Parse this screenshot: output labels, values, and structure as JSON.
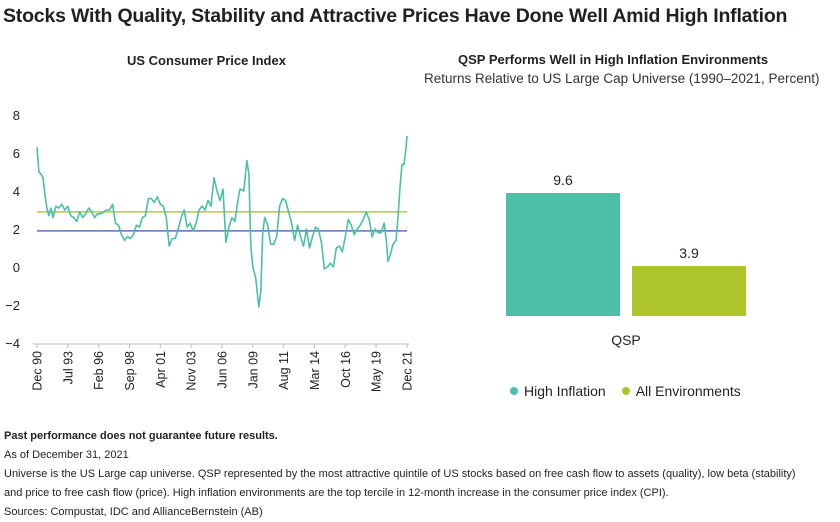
{
  "title": "Stocks With Quality, Stability and Attractive Prices Have Done Well Amid High Inflation",
  "colors": {
    "teal": "#4dbfa6",
    "lime": "#adc42b",
    "hline_green": "#b5cc39",
    "hline_blue": "#5b6fb2"
  },
  "chart_data": [
    {
      "type": "line",
      "title": "US Consumer Price Index",
      "ylim": [
        -4,
        8
      ],
      "yticks": [
        -4,
        -2,
        0,
        2,
        4,
        6,
        8
      ],
      "xlim": [
        1990.92,
        2021.92
      ],
      "x_ticks": [
        {
          "x": 1990.92,
          "label": "Dec 90"
        },
        {
          "x": 1993.5,
          "label": "Jul 93"
        },
        {
          "x": 1996.08,
          "label": "Feb 96"
        },
        {
          "x": 1998.67,
          "label": "Sep 98"
        },
        {
          "x": 2001.25,
          "label": "Apr 01"
        },
        {
          "x": 2003.83,
          "label": "Nov 03"
        },
        {
          "x": 2006.42,
          "label": "Jun 06"
        },
        {
          "x": 2009.0,
          "label": "Jan 09"
        },
        {
          "x": 2011.58,
          "label": "Aug 11"
        },
        {
          "x": 2014.17,
          "label": "Mar 14"
        },
        {
          "x": 2016.75,
          "label": "Oct 16"
        },
        {
          "x": 2019.33,
          "label": "May 19"
        },
        {
          "x": 2021.92,
          "label": "Dec 21"
        }
      ],
      "reference_lines": [
        {
          "y": 2.9,
          "color": "#b5cc39"
        },
        {
          "y": 1.9,
          "color": "#5b6fb2"
        }
      ],
      "series": [
        {
          "color": "#4dbfa6",
          "points": [
            [
              1990.92,
              6.3
            ],
            [
              1991.08,
              5.0
            ],
            [
              1991.25,
              4.9
            ],
            [
              1991.42,
              4.7
            ],
            [
              1991.58,
              3.8
            ],
            [
              1991.75,
              3.1
            ],
            [
              1991.92,
              2.7
            ],
            [
              1992.08,
              3.1
            ],
            [
              1992.25,
              2.6
            ],
            [
              1992.5,
              3.2
            ],
            [
              1992.75,
              3.1
            ],
            [
              1993.0,
              3.3
            ],
            [
              1993.25,
              3.0
            ],
            [
              1993.5,
              3.2
            ],
            [
              1993.75,
              2.7
            ],
            [
              1994.0,
              2.6
            ],
            [
              1994.25,
              2.4
            ],
            [
              1994.5,
              2.9
            ],
            [
              1994.75,
              2.6
            ],
            [
              1995.0,
              2.8
            ],
            [
              1995.25,
              3.1
            ],
            [
              1995.5,
              2.9
            ],
            [
              1995.75,
              2.6
            ],
            [
              1996.0,
              2.8
            ],
            [
              1996.25,
              2.8
            ],
            [
              1996.5,
              2.9
            ],
            [
              1996.75,
              3.0
            ],
            [
              1997.0,
              3.0
            ],
            [
              1997.25,
              3.3
            ],
            [
              1997.5,
              2.3
            ],
            [
              1997.75,
              2.2
            ],
            [
              1998.0,
              1.7
            ],
            [
              1998.25,
              1.4
            ],
            [
              1998.5,
              1.6
            ],
            [
              1998.75,
              1.5
            ],
            [
              1999.0,
              1.7
            ],
            [
              1999.25,
              2.2
            ],
            [
              1999.5,
              2.1
            ],
            [
              1999.75,
              2.6
            ],
            [
              2000.0,
              2.7
            ],
            [
              2000.25,
              3.6
            ],
            [
              2000.5,
              3.6
            ],
            [
              2000.75,
              3.4
            ],
            [
              2001.0,
              3.7
            ],
            [
              2001.25,
              3.3
            ],
            [
              2001.5,
              3.2
            ],
            [
              2001.75,
              2.6
            ],
            [
              2002.0,
              1.1
            ],
            [
              2002.25,
              1.5
            ],
            [
              2002.5,
              1.5
            ],
            [
              2002.75,
              2.0
            ],
            [
              2003.0,
              2.6
            ],
            [
              2003.25,
              3.0
            ],
            [
              2003.5,
              2.1
            ],
            [
              2003.75,
              2.3
            ],
            [
              2004.0,
              1.9
            ],
            [
              2004.25,
              2.3
            ],
            [
              2004.5,
              3.0
            ],
            [
              2004.75,
              3.2
            ],
            [
              2005.0,
              3.0
            ],
            [
              2005.25,
              3.5
            ],
            [
              2005.5,
              3.2
            ],
            [
              2005.75,
              4.7
            ],
            [
              2006.0,
              4.0
            ],
            [
              2006.25,
              3.5
            ],
            [
              2006.5,
              4.1
            ],
            [
              2006.75,
              1.3
            ],
            [
              2007.0,
              2.1
            ],
            [
              2007.25,
              2.6
            ],
            [
              2007.5,
              2.4
            ],
            [
              2007.75,
              3.5
            ],
            [
              2007.92,
              4.1
            ],
            [
              2008.25,
              4.0
            ],
            [
              2008.5,
              5.6
            ],
            [
              2008.67,
              4.9
            ],
            [
              2008.83,
              1.1
            ],
            [
              2009.0,
              0.0
            ],
            [
              2009.25,
              -0.6
            ],
            [
              2009.5,
              -2.1
            ],
            [
              2009.67,
              -1.3
            ],
            [
              2009.83,
              1.8
            ],
            [
              2010.0,
              2.6
            ],
            [
              2010.25,
              2.2
            ],
            [
              2010.5,
              1.2
            ],
            [
              2010.75,
              1.2
            ],
            [
              2011.0,
              1.6
            ],
            [
              2011.25,
              3.2
            ],
            [
              2011.5,
              3.6
            ],
            [
              2011.75,
              3.5
            ],
            [
              2012.0,
              2.9
            ],
            [
              2012.25,
              2.3
            ],
            [
              2012.5,
              1.4
            ],
            [
              2012.75,
              2.2
            ],
            [
              2013.0,
              1.6
            ],
            [
              2013.25,
              1.1
            ],
            [
              2013.5,
              2.0
            ],
            [
              2013.75,
              1.0
            ],
            [
              2014.0,
              1.6
            ],
            [
              2014.25,
              2.1
            ],
            [
              2014.5,
              2.0
            ],
            [
              2014.75,
              1.3
            ],
            [
              2015.0,
              -0.1
            ],
            [
              2015.25,
              0.0
            ],
            [
              2015.5,
              0.2
            ],
            [
              2015.75,
              0.0
            ],
            [
              2016.0,
              1.0
            ],
            [
              2016.25,
              1.1
            ],
            [
              2016.5,
              0.8
            ],
            [
              2016.75,
              1.6
            ],
            [
              2017.0,
              2.5
            ],
            [
              2017.25,
              2.2
            ],
            [
              2017.5,
              1.7
            ],
            [
              2017.75,
              2.0
            ],
            [
              2018.0,
              2.2
            ],
            [
              2018.25,
              2.5
            ],
            [
              2018.5,
              2.9
            ],
            [
              2018.75,
              2.5
            ],
            [
              2019.0,
              1.6
            ],
            [
              2019.25,
              2.0
            ],
            [
              2019.5,
              1.8
            ],
            [
              2019.75,
              1.8
            ],
            [
              2020.0,
              2.3
            ],
            [
              2020.17,
              1.5
            ],
            [
              2020.33,
              0.3
            ],
            [
              2020.5,
              0.6
            ],
            [
              2020.75,
              1.2
            ],
            [
              2021.0,
              1.4
            ],
            [
              2021.17,
              2.6
            ],
            [
              2021.33,
              4.2
            ],
            [
              2021.5,
              5.4
            ],
            [
              2021.67,
              5.4
            ],
            [
              2021.83,
              6.2
            ],
            [
              2021.92,
              6.9
            ]
          ]
        }
      ]
    },
    {
      "type": "bar",
      "title": "QSP Performs Well in High Inflation Environments",
      "subtitle": "Returns Relative to US Large Cap Universe (1990–2021, Percent)",
      "categories": [
        "QSP"
      ],
      "series": [
        {
          "name": "High Inflation",
          "values": [
            9.6
          ],
          "labels": [
            "9.6"
          ],
          "color": "#4dbfa6"
        },
        {
          "name": "All Environments",
          "values": [
            3.9
          ],
          "labels": [
            "3.9"
          ],
          "color": "#adc42b"
        }
      ],
      "ylim": [
        0,
        12
      ]
    }
  ],
  "footer": {
    "disclaimer": "Past performance does not guarantee future results.",
    "as_of": "As of December 31, 2021",
    "note1": "Universe is the US Large cap universe. QSP represented by the most attractive quintile of US stocks based on free cash flow to assets (quality), low beta (stability)",
    "note2": "and price to free cash flow (price). High inflation environments are the top tercile in 12-month increase in the consumer price index (CPI).",
    "sources": "Sources: Compustat, IDC and AllianceBernstein (AB)"
  }
}
